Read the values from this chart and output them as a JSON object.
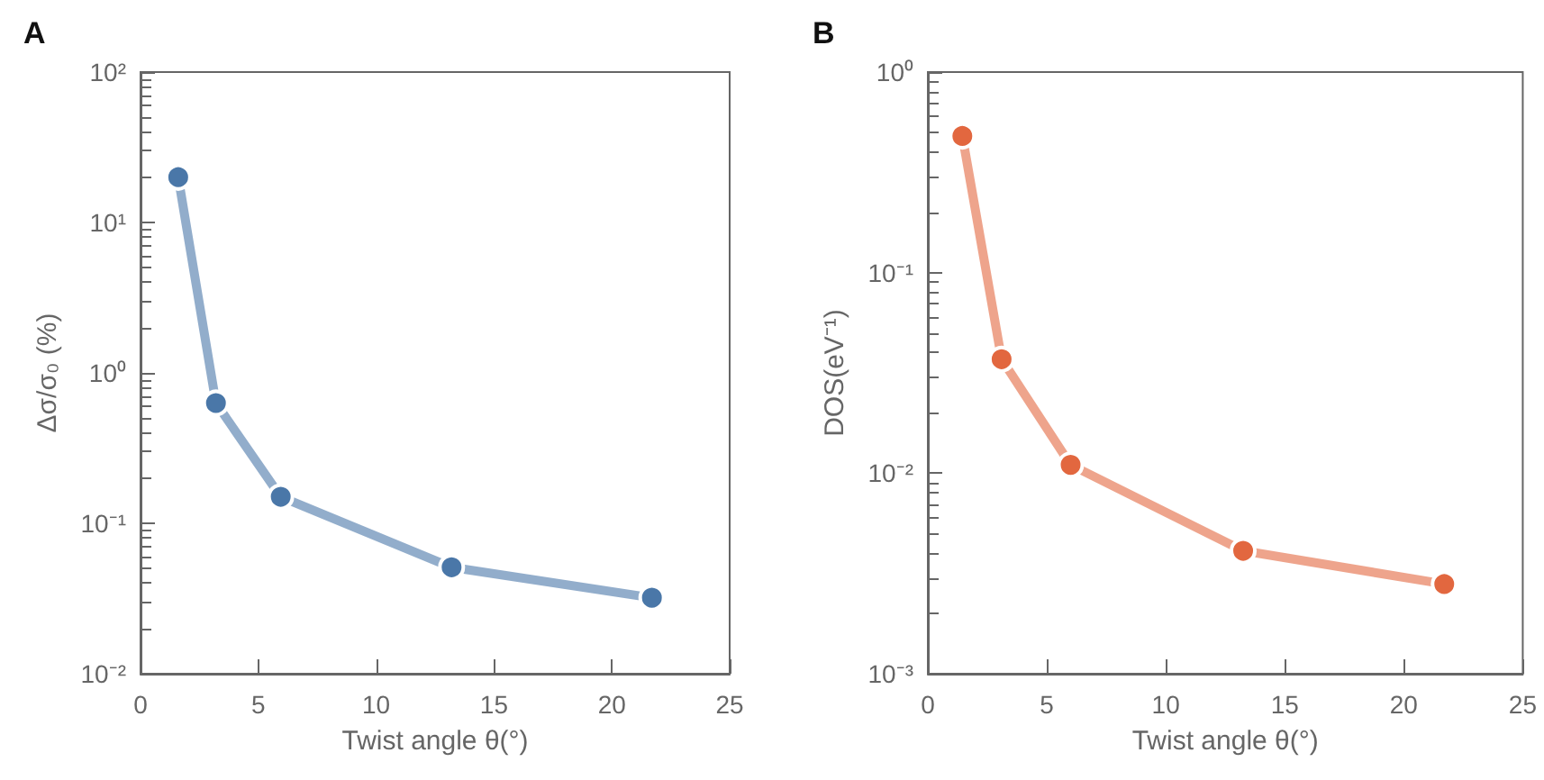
{
  "chart_data": [
    {
      "type": "line",
      "title": "A",
      "xlabel": "Twist angle θ(°)",
      "ylabel": "Δσ/σ₀ (%)",
      "log": "y",
      "marker": "circle",
      "line_style": "solid",
      "x": [
        1.6,
        3.2,
        5.95,
        13.2,
        21.7
      ],
      "series": [
        {
          "color": "#4a77a8",
          "values": [
            20,
            0.63,
            0.15,
            0.051,
            0.032
          ]
        }
      ],
      "xlim": [
        0,
        25
      ],
      "xticks": [
        0,
        5,
        10,
        15,
        20,
        25
      ],
      "ylim": [
        0.01,
        100
      ],
      "yticks": [
        {
          "value": 0.01,
          "label": "10⁻²"
        },
        {
          "value": 0.1,
          "label": "10⁻¹"
        },
        {
          "value": 1,
          "label": "10⁰"
        },
        {
          "value": 10,
          "label": "10¹"
        },
        {
          "value": 100,
          "label": "10²"
        }
      ]
    },
    {
      "type": "line",
      "title": "B",
      "xlabel": "Twist angle θ(°)",
      "ylabel": "DOS(eV⁻¹)",
      "log": "y",
      "marker": "circle",
      "line_style": "solid",
      "x": [
        1.45,
        3.1,
        6.0,
        13.25,
        21.7
      ],
      "series": [
        {
          "color": "#e2673f",
          "values": [
            0.48,
            0.037,
            0.011,
            0.0041,
            0.0028
          ]
        }
      ],
      "xlim": [
        0,
        25
      ],
      "xticks": [
        0,
        5,
        10,
        15,
        20,
        25
      ],
      "ylim": [
        0.001,
        1
      ],
      "yticks": [
        {
          "value": 0.001,
          "label": "10⁻³"
        },
        {
          "value": 0.01,
          "label": "10⁻²"
        },
        {
          "value": 0.1,
          "label": "10⁻¹"
        },
        {
          "value": 1,
          "label": "10⁰"
        }
      ]
    }
  ]
}
